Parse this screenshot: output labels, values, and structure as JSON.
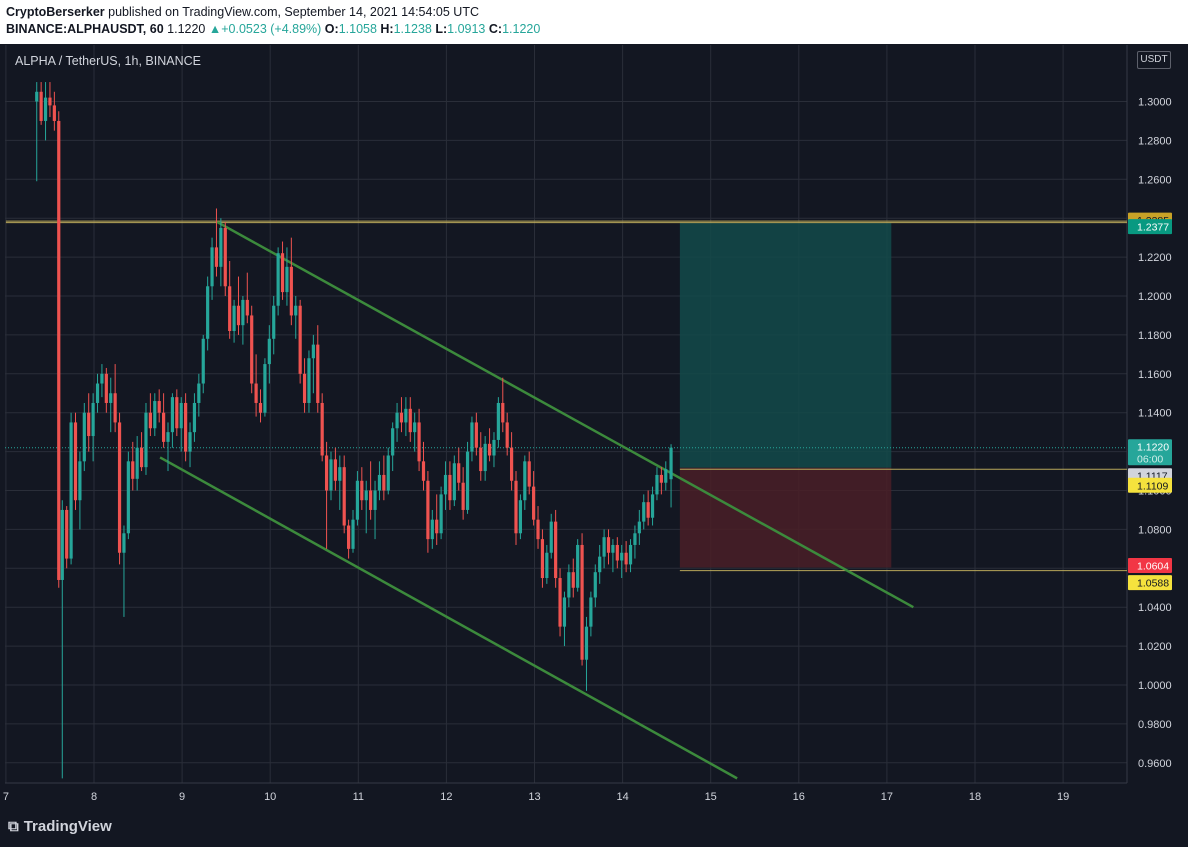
{
  "header": {
    "publisher": "CryptoBerserker",
    "published_text": "published on TradingView.com, September 14, 2021 14:54:05 UTC",
    "symbol": "BINANCE:ALPHAUSDT, 60",
    "last": "1.1220",
    "change": "+0.0523 (+4.89%)",
    "o_label": "O:",
    "o": "1.1058",
    "h_label": "H:",
    "h": "1.1238",
    "l_label": "L:",
    "l": "1.0913",
    "c_label": "C:",
    "c": "1.1220"
  },
  "symbol_label": "ALPHA / TetherUS, 1h, BINANCE",
  "currency": "USDT",
  "logo_text": "TradingView",
  "logo_icon": "tradingview-logo-icon",
  "colors": {
    "up": "#26a69a",
    "down": "#ef5350",
    "grid": "#2a2e39",
    "channel": "#3c8a3c",
    "target_zone": "#134a4a",
    "stop_zone": "#4a1f27",
    "hline": "#b8a75a",
    "bg": "#131722"
  },
  "chart_data": {
    "type": "candlestick",
    "ylim": [
      0.95,
      1.31
    ],
    "xlim": [
      7,
      19.7
    ],
    "y_ticks": [
      "1.3000",
      "1.2800",
      "1.2600",
      "1.2400",
      "1.2200",
      "1.2000",
      "1.1800",
      "1.1600",
      "1.1400",
      "1.1200",
      "1.1000",
      "1.0800",
      "1.0600",
      "1.0400",
      "1.0200",
      "1.0000",
      "0.9800",
      "0.9600"
    ],
    "x_ticks": [
      "7",
      "8",
      "9",
      "10",
      "11",
      "12",
      "13",
      "14",
      "15",
      "16",
      "17",
      "18",
      "19"
    ],
    "price_labels": [
      {
        "text": "1.2385",
        "value": 1.2385,
        "color": "#c9a227",
        "text_color": "#131722"
      },
      {
        "text": "1.2377",
        "value": 1.2377,
        "color": "#089981",
        "text_color": "#ffffff"
      },
      {
        "text": "1.1220",
        "value": 1.122,
        "color": "#26a69a",
        "text_color": "#ffffff",
        "sub": "06:00"
      },
      {
        "text": "1.1117",
        "value": 1.1117,
        "color": "#d1d4dc",
        "text_color": "#131722"
      },
      {
        "text": "1.1109",
        "value": 1.1109,
        "color": "#f5e23d",
        "text_color": "#131722"
      },
      {
        "text": "1.0604",
        "value": 1.0604,
        "color": "#f23645",
        "text_color": "#ffffff"
      },
      {
        "text": "1.0588",
        "value": 1.0588,
        "color": "#f5e23d",
        "text_color": "#131722"
      }
    ],
    "horizontal_lines": [
      {
        "value": 1.2385,
        "x_from": 7,
        "x_to": 19.7
      },
      {
        "value": 1.2377,
        "x_from": 7,
        "x_to": 19.7
      },
      {
        "value": 1.1109,
        "x_from": 14.65,
        "x_to": 19.7
      },
      {
        "value": 1.0588,
        "x_from": 14.65,
        "x_to": 19.7
      }
    ],
    "last_price_line": 1.122,
    "channel_upper": {
      "x1": 9.4,
      "y1": 1.238,
      "x2": 17.3,
      "y2": 1.04
    },
    "channel_lower": {
      "x1": 8.75,
      "y1": 1.117,
      "x2": 15.3,
      "y2": 0.952
    },
    "target_zone": {
      "x1": 14.65,
      "x2": 17.05,
      "y1": 1.1117,
      "y2": 1.2377
    },
    "stop_zone": {
      "x1": 14.65,
      "x2": 17.05,
      "y1": 1.0604,
      "y2": 1.1117
    },
    "candles": [
      {
        "x": 7.35,
        "o": 1.3,
        "h": 1.31,
        "l": 1.259,
        "c": 1.305
      },
      {
        "x": 7.4,
        "o": 1.305,
        "h": 1.31,
        "l": 1.288,
        "c": 1.29
      },
      {
        "x": 7.45,
        "o": 1.29,
        "h": 1.31,
        "l": 1.28,
        "c": 1.302
      },
      {
        "x": 7.5,
        "o": 1.302,
        "h": 1.31,
        "l": 1.292,
        "c": 1.298
      },
      {
        "x": 7.55,
        "o": 1.298,
        "h": 1.305,
        "l": 1.285,
        "c": 1.29
      },
      {
        "x": 7.6,
        "o": 1.29,
        "h": 1.295,
        "l": 1.05,
        "c": 1.054
      },
      {
        "x": 7.64,
        "o": 1.054,
        "h": 1.095,
        "l": 0.952,
        "c": 1.09
      },
      {
        "x": 7.69,
        "o": 1.09,
        "h": 1.092,
        "l": 1.06,
        "c": 1.065
      },
      {
        "x": 7.74,
        "o": 1.065,
        "h": 1.14,
        "l": 1.062,
        "c": 1.135
      },
      {
        "x": 7.79,
        "o": 1.135,
        "h": 1.14,
        "l": 1.09,
        "c": 1.095
      },
      {
        "x": 7.84,
        "o": 1.095,
        "h": 1.12,
        "l": 1.08,
        "c": 1.115
      },
      {
        "x": 7.89,
        "o": 1.115,
        "h": 1.145,
        "l": 1.11,
        "c": 1.14
      },
      {
        "x": 7.94,
        "o": 1.14,
        "h": 1.15,
        "l": 1.12,
        "c": 1.128
      },
      {
        "x": 7.99,
        "o": 1.128,
        "h": 1.15,
        "l": 1.115,
        "c": 1.145
      },
      {
        "x": 8.04,
        "o": 1.145,
        "h": 1.16,
        "l": 1.14,
        "c": 1.155
      },
      {
        "x": 8.09,
        "o": 1.155,
        "h": 1.165,
        "l": 1.148,
        "c": 1.16
      },
      {
        "x": 8.14,
        "o": 1.16,
        "h": 1.163,
        "l": 1.14,
        "c": 1.145
      },
      {
        "x": 8.19,
        "o": 1.145,
        "h": 1.158,
        "l": 1.13,
        "c": 1.15
      },
      {
        "x": 8.24,
        "o": 1.15,
        "h": 1.165,
        "l": 1.13,
        "c": 1.135
      },
      {
        "x": 8.29,
        "o": 1.135,
        "h": 1.14,
        "l": 1.062,
        "c": 1.068
      },
      {
        "x": 8.34,
        "o": 1.068,
        "h": 1.082,
        "l": 1.035,
        "c": 1.078
      },
      {
        "x": 8.39,
        "o": 1.078,
        "h": 1.12,
        "l": 1.075,
        "c": 1.115
      },
      {
        "x": 8.44,
        "o": 1.115,
        "h": 1.125,
        "l": 1.1,
        "c": 1.106
      },
      {
        "x": 8.49,
        "o": 1.106,
        "h": 1.128,
        "l": 1.1,
        "c": 1.122
      },
      {
        "x": 8.54,
        "o": 1.122,
        "h": 1.13,
        "l": 1.11,
        "c": 1.112
      },
      {
        "x": 8.59,
        "o": 1.112,
        "h": 1.145,
        "l": 1.108,
        "c": 1.14
      },
      {
        "x": 8.64,
        "o": 1.14,
        "h": 1.15,
        "l": 1.128,
        "c": 1.132
      },
      {
        "x": 8.69,
        "o": 1.132,
        "h": 1.15,
        "l": 1.128,
        "c": 1.146
      },
      {
        "x": 8.74,
        "o": 1.146,
        "h": 1.152,
        "l": 1.135,
        "c": 1.14
      },
      {
        "x": 8.79,
        "o": 1.14,
        "h": 1.15,
        "l": 1.122,
        "c": 1.125
      },
      {
        "x": 8.84,
        "o": 1.125,
        "h": 1.135,
        "l": 1.11,
        "c": 1.13
      },
      {
        "x": 8.89,
        "o": 1.13,
        "h": 1.15,
        "l": 1.122,
        "c": 1.148
      },
      {
        "x": 8.94,
        "o": 1.148,
        "h": 1.152,
        "l": 1.128,
        "c": 1.132
      },
      {
        "x": 8.99,
        "o": 1.132,
        "h": 1.148,
        "l": 1.12,
        "c": 1.145
      },
      {
        "x": 9.04,
        "o": 1.145,
        "h": 1.15,
        "l": 1.115,
        "c": 1.12
      },
      {
        "x": 9.09,
        "o": 1.12,
        "h": 1.135,
        "l": 1.112,
        "c": 1.13
      },
      {
        "x": 9.14,
        "o": 1.13,
        "h": 1.15,
        "l": 1.125,
        "c": 1.145
      },
      {
        "x": 9.19,
        "o": 1.145,
        "h": 1.16,
        "l": 1.138,
        "c": 1.155
      },
      {
        "x": 9.24,
        "o": 1.155,
        "h": 1.18,
        "l": 1.15,
        "c": 1.178
      },
      {
        "x": 9.29,
        "o": 1.178,
        "h": 1.21,
        "l": 1.172,
        "c": 1.205
      },
      {
        "x": 9.34,
        "o": 1.205,
        "h": 1.23,
        "l": 1.198,
        "c": 1.225
      },
      {
        "x": 9.39,
        "o": 1.225,
        "h": 1.245,
        "l": 1.21,
        "c": 1.215
      },
      {
        "x": 9.44,
        "o": 1.215,
        "h": 1.24,
        "l": 1.205,
        "c": 1.235
      },
      {
        "x": 9.49,
        "o": 1.235,
        "h": 1.238,
        "l": 1.2,
        "c": 1.205
      },
      {
        "x": 9.54,
        "o": 1.205,
        "h": 1.218,
        "l": 1.178,
        "c": 1.182
      },
      {
        "x": 9.59,
        "o": 1.182,
        "h": 1.198,
        "l": 1.176,
        "c": 1.195
      },
      {
        "x": 9.64,
        "o": 1.195,
        "h": 1.21,
        "l": 1.18,
        "c": 1.185
      },
      {
        "x": 9.69,
        "o": 1.185,
        "h": 1.2,
        "l": 1.175,
        "c": 1.198
      },
      {
        "x": 9.74,
        "o": 1.198,
        "h": 1.212,
        "l": 1.186,
        "c": 1.19
      },
      {
        "x": 9.79,
        "o": 1.19,
        "h": 1.195,
        "l": 1.15,
        "c": 1.155
      },
      {
        "x": 9.84,
        "o": 1.155,
        "h": 1.17,
        "l": 1.138,
        "c": 1.145
      },
      {
        "x": 9.89,
        "o": 1.145,
        "h": 1.152,
        "l": 1.135,
        "c": 1.14
      },
      {
        "x": 9.94,
        "o": 1.14,
        "h": 1.168,
        "l": 1.138,
        "c": 1.165
      },
      {
        "x": 9.99,
        "o": 1.165,
        "h": 1.185,
        "l": 1.155,
        "c": 1.178
      },
      {
        "x": 10.04,
        "o": 1.178,
        "h": 1.2,
        "l": 1.17,
        "c": 1.195
      },
      {
        "x": 10.09,
        "o": 1.195,
        "h": 1.225,
        "l": 1.19,
        "c": 1.222
      },
      {
        "x": 10.14,
        "o": 1.222,
        "h": 1.228,
        "l": 1.198,
        "c": 1.202
      },
      {
        "x": 10.19,
        "o": 1.202,
        "h": 1.225,
        "l": 1.195,
        "c": 1.215
      },
      {
        "x": 10.24,
        "o": 1.215,
        "h": 1.23,
        "l": 1.185,
        "c": 1.19
      },
      {
        "x": 10.29,
        "o": 1.19,
        "h": 1.2,
        "l": 1.178,
        "c": 1.195
      },
      {
        "x": 10.34,
        "o": 1.195,
        "h": 1.198,
        "l": 1.155,
        "c": 1.16
      },
      {
        "x": 10.39,
        "o": 1.16,
        "h": 1.168,
        "l": 1.14,
        "c": 1.145
      },
      {
        "x": 10.44,
        "o": 1.145,
        "h": 1.172,
        "l": 1.14,
        "c": 1.168
      },
      {
        "x": 10.49,
        "o": 1.168,
        "h": 1.18,
        "l": 1.15,
        "c": 1.175
      },
      {
        "x": 10.54,
        "o": 1.175,
        "h": 1.185,
        "l": 1.14,
        "c": 1.145
      },
      {
        "x": 10.59,
        "o": 1.145,
        "h": 1.15,
        "l": 1.115,
        "c": 1.118
      },
      {
        "x": 10.64,
        "o": 1.118,
        "h": 1.125,
        "l": 1.07,
        "c": 1.1
      },
      {
        "x": 10.69,
        "o": 1.1,
        "h": 1.12,
        "l": 1.095,
        "c": 1.116
      },
      {
        "x": 10.74,
        "o": 1.116,
        "h": 1.122,
        "l": 1.1,
        "c": 1.105
      },
      {
        "x": 10.79,
        "o": 1.105,
        "h": 1.118,
        "l": 1.09,
        "c": 1.112
      },
      {
        "x": 10.84,
        "o": 1.112,
        "h": 1.118,
        "l": 1.078,
        "c": 1.082
      },
      {
        "x": 10.89,
        "o": 1.082,
        "h": 1.085,
        "l": 1.065,
        "c": 1.07
      },
      {
        "x": 10.94,
        "o": 1.07,
        "h": 1.09,
        "l": 1.068,
        "c": 1.085
      },
      {
        "x": 10.99,
        "o": 1.085,
        "h": 1.11,
        "l": 1.082,
        "c": 1.105
      },
      {
        "x": 11.04,
        "o": 1.105,
        "h": 1.112,
        "l": 1.09,
        "c": 1.095
      },
      {
        "x": 11.09,
        "o": 1.095,
        "h": 1.105,
        "l": 1.078,
        "c": 1.1
      },
      {
        "x": 11.14,
        "o": 1.1,
        "h": 1.115,
        "l": 1.085,
        "c": 1.09
      },
      {
        "x": 11.19,
        "o": 1.09,
        "h": 1.105,
        "l": 1.075,
        "c": 1.1
      },
      {
        "x": 11.24,
        "o": 1.1,
        "h": 1.115,
        "l": 1.095,
        "c": 1.108
      },
      {
        "x": 11.29,
        "o": 1.108,
        "h": 1.118,
        "l": 1.095,
        "c": 1.1
      },
      {
        "x": 11.34,
        "o": 1.1,
        "h": 1.122,
        "l": 1.098,
        "c": 1.118
      },
      {
        "x": 11.39,
        "o": 1.118,
        "h": 1.135,
        "l": 1.11,
        "c": 1.132
      },
      {
        "x": 11.44,
        "o": 1.132,
        "h": 1.145,
        "l": 1.125,
        "c": 1.14
      },
      {
        "x": 11.49,
        "o": 1.14,
        "h": 1.148,
        "l": 1.13,
        "c": 1.135
      },
      {
        "x": 11.54,
        "o": 1.135,
        "h": 1.148,
        "l": 1.128,
        "c": 1.142
      },
      {
        "x": 11.59,
        "o": 1.142,
        "h": 1.148,
        "l": 1.125,
        "c": 1.13
      },
      {
        "x": 11.64,
        "o": 1.13,
        "h": 1.14,
        "l": 1.12,
        "c": 1.135
      },
      {
        "x": 11.69,
        "o": 1.135,
        "h": 1.142,
        "l": 1.11,
        "c": 1.115
      },
      {
        "x": 11.74,
        "o": 1.115,
        "h": 1.125,
        "l": 1.1,
        "c": 1.105
      },
      {
        "x": 11.79,
        "o": 1.105,
        "h": 1.11,
        "l": 1.068,
        "c": 1.075
      },
      {
        "x": 11.84,
        "o": 1.075,
        "h": 1.09,
        "l": 1.07,
        "c": 1.085
      },
      {
        "x": 11.89,
        "o": 1.085,
        "h": 1.098,
        "l": 1.072,
        "c": 1.078
      },
      {
        "x": 11.94,
        "o": 1.078,
        "h": 1.102,
        "l": 1.075,
        "c": 1.098
      },
      {
        "x": 11.99,
        "o": 1.098,
        "h": 1.115,
        "l": 1.09,
        "c": 1.108
      },
      {
        "x": 12.04,
        "o": 1.108,
        "h": 1.115,
        "l": 1.09,
        "c": 1.095
      },
      {
        "x": 12.09,
        "o": 1.095,
        "h": 1.118,
        "l": 1.092,
        "c": 1.114
      },
      {
        "x": 12.14,
        "o": 1.114,
        "h": 1.122,
        "l": 1.1,
        "c": 1.104
      },
      {
        "x": 12.19,
        "o": 1.104,
        "h": 1.112,
        "l": 1.085,
        "c": 1.09
      },
      {
        "x": 12.24,
        "o": 1.09,
        "h": 1.125,
        "l": 1.088,
        "c": 1.12
      },
      {
        "x": 12.29,
        "o": 1.12,
        "h": 1.138,
        "l": 1.115,
        "c": 1.135
      },
      {
        "x": 12.34,
        "o": 1.135,
        "h": 1.14,
        "l": 1.118,
        "c": 1.122
      },
      {
        "x": 12.39,
        "o": 1.122,
        "h": 1.13,
        "l": 1.105,
        "c": 1.11
      },
      {
        "x": 12.44,
        "o": 1.11,
        "h": 1.128,
        "l": 1.105,
        "c": 1.124
      },
      {
        "x": 12.49,
        "o": 1.124,
        "h": 1.132,
        "l": 1.115,
        "c": 1.118
      },
      {
        "x": 12.54,
        "o": 1.118,
        "h": 1.13,
        "l": 1.112,
        "c": 1.126
      },
      {
        "x": 12.59,
        "o": 1.126,
        "h": 1.148,
        "l": 1.122,
        "c": 1.145
      },
      {
        "x": 12.64,
        "o": 1.145,
        "h": 1.158,
        "l": 1.13,
        "c": 1.135
      },
      {
        "x": 12.69,
        "o": 1.135,
        "h": 1.14,
        "l": 1.118,
        "c": 1.122
      },
      {
        "x": 12.74,
        "o": 1.122,
        "h": 1.13,
        "l": 1.1,
        "c": 1.105
      },
      {
        "x": 12.79,
        "o": 1.105,
        "h": 1.11,
        "l": 1.072,
        "c": 1.078
      },
      {
        "x": 12.84,
        "o": 1.078,
        "h": 1.098,
        "l": 1.075,
        "c": 1.095
      },
      {
        "x": 12.89,
        "o": 1.095,
        "h": 1.118,
        "l": 1.09,
        "c": 1.115
      },
      {
        "x": 12.94,
        "o": 1.115,
        "h": 1.12,
        "l": 1.098,
        "c": 1.102
      },
      {
        "x": 12.99,
        "o": 1.102,
        "h": 1.11,
        "l": 1.082,
        "c": 1.085
      },
      {
        "x": 13.04,
        "o": 1.085,
        "h": 1.092,
        "l": 1.07,
        "c": 1.075
      },
      {
        "x": 13.09,
        "o": 1.075,
        "h": 1.08,
        "l": 1.05,
        "c": 1.055
      },
      {
        "x": 13.14,
        "o": 1.055,
        "h": 1.072,
        "l": 1.052,
        "c": 1.068
      },
      {
        "x": 13.19,
        "o": 1.068,
        "h": 1.088,
        "l": 1.065,
        "c": 1.084
      },
      {
        "x": 13.24,
        "o": 1.084,
        "h": 1.09,
        "l": 1.05,
        "c": 1.055
      },
      {
        "x": 13.29,
        "o": 1.055,
        "h": 1.06,
        "l": 1.025,
        "c": 1.03
      },
      {
        "x": 13.34,
        "o": 1.03,
        "h": 1.048,
        "l": 1.02,
        "c": 1.045
      },
      {
        "x": 13.39,
        "o": 1.045,
        "h": 1.062,
        "l": 1.04,
        "c": 1.058
      },
      {
        "x": 13.44,
        "o": 1.058,
        "h": 1.065,
        "l": 1.045,
        "c": 1.05
      },
      {
        "x": 13.49,
        "o": 1.05,
        "h": 1.075,
        "l": 1.048,
        "c": 1.072
      },
      {
        "x": 13.54,
        "o": 1.072,
        "h": 1.078,
        "l": 1.01,
        "c": 1.013
      },
      {
        "x": 13.59,
        "o": 1.013,
        "h": 1.035,
        "l": 0.997,
        "c": 1.03
      },
      {
        "x": 13.64,
        "o": 1.03,
        "h": 1.048,
        "l": 1.025,
        "c": 1.045
      },
      {
        "x": 13.69,
        "o": 1.045,
        "h": 1.062,
        "l": 1.04,
        "c": 1.058
      },
      {
        "x": 13.74,
        "o": 1.058,
        "h": 1.072,
        "l": 1.052,
        "c": 1.066
      },
      {
        "x": 13.79,
        "o": 1.066,
        "h": 1.08,
        "l": 1.06,
        "c": 1.076
      },
      {
        "x": 13.84,
        "o": 1.076,
        "h": 1.08,
        "l": 1.062,
        "c": 1.068
      },
      {
        "x": 13.89,
        "o": 1.068,
        "h": 1.075,
        "l": 1.058,
        "c": 1.072
      },
      {
        "x": 13.94,
        "o": 1.072,
        "h": 1.076,
        "l": 1.06,
        "c": 1.064
      },
      {
        "x": 13.99,
        "o": 1.064,
        "h": 1.072,
        "l": 1.055,
        "c": 1.068
      },
      {
        "x": 14.04,
        "o": 1.068,
        "h": 1.074,
        "l": 1.058,
        "c": 1.062
      },
      {
        "x": 14.09,
        "o": 1.062,
        "h": 1.075,
        "l": 1.058,
        "c": 1.072
      },
      {
        "x": 14.14,
        "o": 1.072,
        "h": 1.082,
        "l": 1.065,
        "c": 1.078
      },
      {
        "x": 14.19,
        "o": 1.078,
        "h": 1.09,
        "l": 1.072,
        "c": 1.084
      },
      {
        "x": 14.24,
        "o": 1.084,
        "h": 1.098,
        "l": 1.08,
        "c": 1.094
      },
      {
        "x": 14.29,
        "o": 1.094,
        "h": 1.1,
        "l": 1.082,
        "c": 1.086
      },
      {
        "x": 14.34,
        "o": 1.086,
        "h": 1.102,
        "l": 1.082,
        "c": 1.098
      },
      {
        "x": 14.39,
        "o": 1.098,
        "h": 1.112,
        "l": 1.095,
        "c": 1.108
      },
      {
        "x": 14.44,
        "o": 1.108,
        "h": 1.112,
        "l": 1.098,
        "c": 1.104
      },
      {
        "x": 14.49,
        "o": 1.104,
        "h": 1.115,
        "l": 1.1,
        "c": 1.111
      },
      {
        "x": 14.55,
        "o": 1.1058,
        "h": 1.1238,
        "l": 1.0913,
        "c": 1.122
      }
    ]
  }
}
